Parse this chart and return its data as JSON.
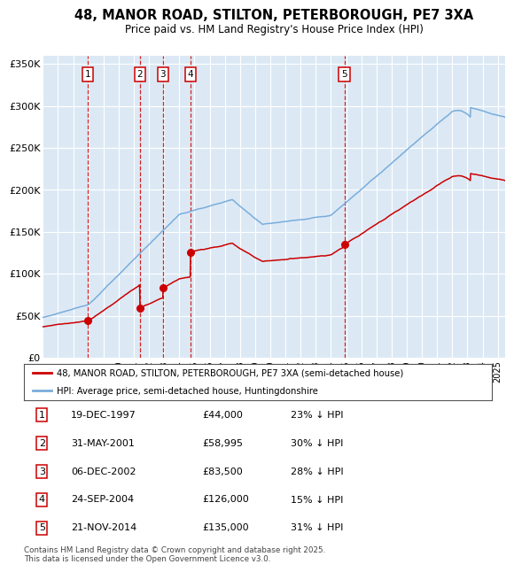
{
  "title": "48, MANOR ROAD, STILTON, PETERBOROUGH, PE7 3XA",
  "subtitle": "Price paid vs. HM Land Registry's House Price Index (HPI)",
  "background_color": "#dce9f5",
  "grid_color": "#ffffff",
  "legend_label_red": "48, MANOR ROAD, STILTON, PETERBOROUGH, PE7 3XA (semi-detached house)",
  "legend_label_blue": "HPI: Average price, semi-detached house, Huntingdonshire",
  "footer": "Contains HM Land Registry data © Crown copyright and database right 2025.\nThis data is licensed under the Open Government Licence v3.0.",
  "sale_events": [
    {
      "num": 1,
      "date": "19-DEC-1997",
      "price": 44000,
      "pct": "23%",
      "x_year": 1997.96
    },
    {
      "num": 2,
      "date": "31-MAY-2001",
      "price": 58995,
      "pct": "30%",
      "x_year": 2001.41
    },
    {
      "num": 3,
      "date": "06-DEC-2002",
      "price": 83500,
      "pct": "28%",
      "x_year": 2002.92
    },
    {
      "num": 4,
      "date": "24-SEP-2004",
      "price": 126000,
      "pct": "15%",
      "x_year": 2004.73
    },
    {
      "num": 5,
      "date": "21-NOV-2014",
      "price": 135000,
      "pct": "31%",
      "x_year": 2014.89
    }
  ],
  "ylim": [
    0,
    360000
  ],
  "xlim": [
    1995.0,
    2025.5
  ],
  "yticks": [
    0,
    50000,
    100000,
    150000,
    200000,
    250000,
    300000,
    350000
  ],
  "ytick_labels": [
    "£0",
    "£50K",
    "£100K",
    "£150K",
    "£200K",
    "£250K",
    "£300K",
    "£350K"
  ],
  "xtick_years": [
    1995,
    1996,
    1997,
    1998,
    1999,
    2000,
    2001,
    2002,
    2003,
    2004,
    2005,
    2006,
    2007,
    2008,
    2009,
    2010,
    2011,
    2012,
    2013,
    2014,
    2015,
    2016,
    2017,
    2018,
    2019,
    2020,
    2021,
    2022,
    2023,
    2024,
    2025
  ],
  "red_color": "#cc0000",
  "blue_color": "#7aaddb",
  "dashed_color": "#cc0000",
  "table_rows": [
    [
      "1",
      "19-DEC-1997",
      "£44,000",
      "23% ↓ HPI"
    ],
    [
      "2",
      "31-MAY-2001",
      "£58,995",
      "30% ↓ HPI"
    ],
    [
      "3",
      "06-DEC-2002",
      "£83,500",
      "28% ↓ HPI"
    ],
    [
      "4",
      "24-SEP-2004",
      "£126,000",
      "15% ↓ HPI"
    ],
    [
      "5",
      "21-NOV-2014",
      "£135,000",
      "31% ↓ HPI"
    ]
  ]
}
